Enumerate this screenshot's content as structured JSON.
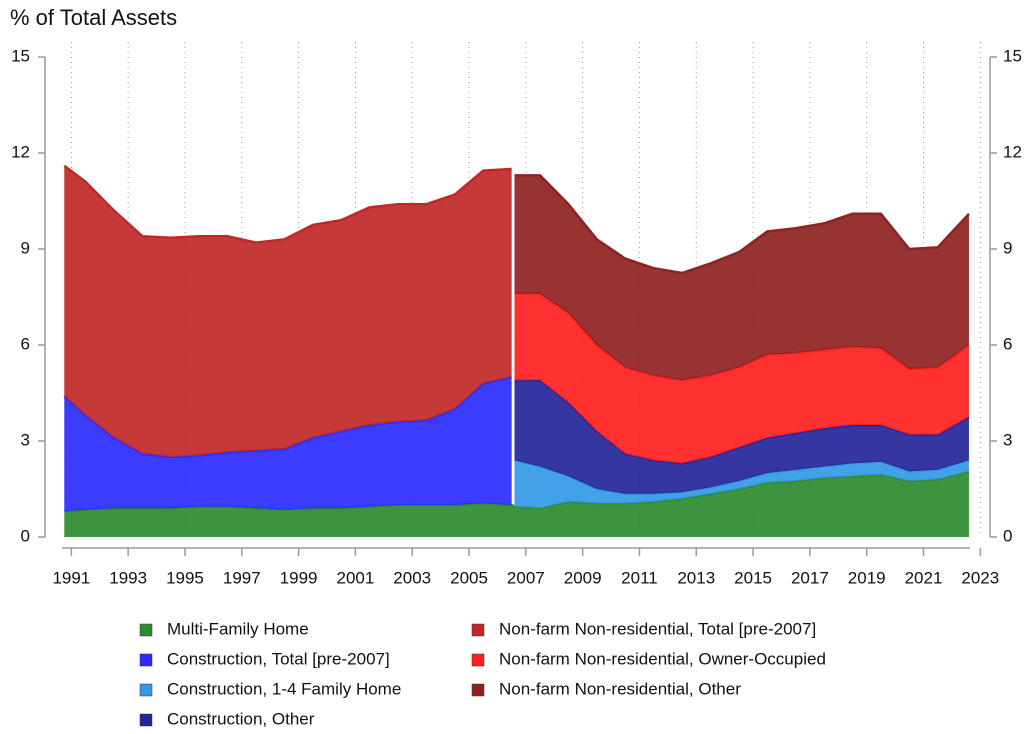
{
  "chart_data": {
    "type": "stacked_area",
    "title": "% of Total Assets",
    "x": [
      1990.75,
      1991.5,
      1992.5,
      1993.5,
      1994.5,
      1995.5,
      1996.5,
      1997.5,
      1998.5,
      1999.5,
      2000.5,
      2001.5,
      2002.5,
      2003.5,
      2004.5,
      2005.5,
      2006.5,
      2006.6,
      2007.5,
      2008.5,
      2009.5,
      2010.5,
      2011.5,
      2012.5,
      2013.5,
      2014.5,
      2015.5,
      2016.5,
      2017.5,
      2018.5,
      2019.5,
      2020.5,
      2021.5,
      2022.6
    ],
    "series": [
      {
        "name": "Multi-Family Home",
        "color": "#2e8b2e",
        "values": [
          0.8,
          0.85,
          0.9,
          0.9,
          0.9,
          0.95,
          0.95,
          0.9,
          0.85,
          0.9,
          0.9,
          0.95,
          1.0,
          1.0,
          1.0,
          1.05,
          1.0,
          0.95,
          0.9,
          1.1,
          1.05,
          1.05,
          1.1,
          1.2,
          1.35,
          1.5,
          1.7,
          1.75,
          1.85,
          1.9,
          1.95,
          1.75,
          1.8,
          2.05
        ]
      },
      {
        "name": "Construction, Total [pre-2007]",
        "color": "#2b2bff",
        "values": [
          3.6,
          2.95,
          2.2,
          1.7,
          1.6,
          1.6,
          1.7,
          1.8,
          1.9,
          2.2,
          2.4,
          2.55,
          2.6,
          2.65,
          3.0,
          3.75,
          4.0,
          null,
          null,
          null,
          null,
          null,
          null,
          null,
          null,
          null,
          null,
          null,
          null,
          null,
          null,
          null,
          null,
          null
        ]
      },
      {
        "name": "Construction, 1-4 Family Home",
        "color": "#3399e6",
        "values": [
          null,
          null,
          null,
          null,
          null,
          null,
          null,
          null,
          null,
          null,
          null,
          null,
          null,
          null,
          null,
          null,
          null,
          1.45,
          1.3,
          0.8,
          0.45,
          0.3,
          0.25,
          0.2,
          0.2,
          0.25,
          0.3,
          0.35,
          0.35,
          0.4,
          0.4,
          0.3,
          0.3,
          0.35
        ]
      },
      {
        "name": "Construction, Other",
        "color": "#25259a",
        "values": [
          null,
          null,
          null,
          null,
          null,
          null,
          null,
          null,
          null,
          null,
          null,
          null,
          null,
          null,
          null,
          null,
          null,
          2.5,
          2.7,
          2.3,
          1.8,
          1.25,
          1.05,
          0.9,
          0.95,
          1.05,
          1.1,
          1.15,
          1.2,
          1.2,
          1.15,
          1.15,
          1.1,
          1.35
        ]
      },
      {
        "name": "Non-farm Non-residential, Total [pre-2007]",
        "color": "#c02828",
        "values": [
          7.2,
          7.3,
          7.1,
          6.8,
          6.85,
          6.85,
          6.75,
          6.5,
          6.55,
          6.65,
          6.6,
          6.8,
          6.8,
          6.75,
          6.7,
          6.65,
          6.5,
          null,
          null,
          null,
          null,
          null,
          null,
          null,
          null,
          null,
          null,
          null,
          null,
          null,
          null,
          null,
          null,
          null
        ]
      },
      {
        "name": "Non-farm Non-residential, Owner-Occupied",
        "color": "#ff2020",
        "values": [
          null,
          null,
          null,
          null,
          null,
          null,
          null,
          null,
          null,
          null,
          null,
          null,
          null,
          null,
          null,
          null,
          null,
          2.7,
          2.7,
          2.8,
          2.7,
          2.7,
          2.65,
          2.6,
          2.55,
          2.5,
          2.6,
          2.5,
          2.45,
          2.45,
          2.4,
          2.05,
          2.1,
          2.25
        ]
      },
      {
        "name": "Non-farm Non-residential, Other",
        "color": "#8e2222",
        "values": [
          null,
          null,
          null,
          null,
          null,
          null,
          null,
          null,
          null,
          null,
          null,
          null,
          null,
          null,
          null,
          null,
          null,
          3.7,
          3.7,
          3.4,
          3.3,
          3.4,
          3.35,
          3.35,
          3.5,
          3.6,
          3.85,
          3.9,
          3.95,
          4.15,
          4.2,
          3.75,
          3.75,
          4.1
        ]
      }
    ],
    "xlim": [
      1990.6,
      2023.2
    ],
    "xticks": [
      1991,
      1993,
      1995,
      1997,
      1999,
      2001,
      2003,
      2005,
      2007,
      2009,
      2011,
      2013,
      2015,
      2017,
      2019,
      2021,
      2023
    ],
    "ylim": [
      0,
      15
    ],
    "yticks": [
      0,
      3,
      6,
      9,
      12,
      15
    ],
    "grid": true
  }
}
